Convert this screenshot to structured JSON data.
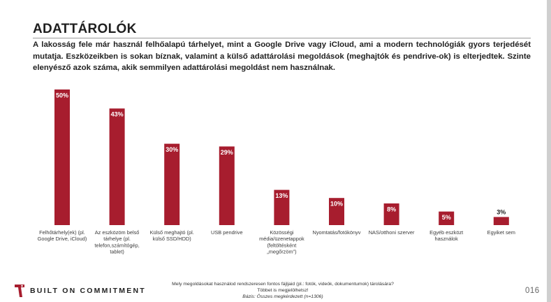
{
  "slide": {
    "title": "ADATTÁROLÓK",
    "intro": "A lakosság fele már használ felhőalapú tárhelyet, mint a Google Drive vagy iCloud, ami a modern technológiák gyors terjedését mutatja. Eszközeikben is sokan bíznak, valamint a külső adattárolási megoldások (meghajtók és pendrive-ok) is elterjedtek. Szinte elenyésző azok száma, akik semmilyen adattárolási megoldást nem használnak.",
    "page_number": "016"
  },
  "footer": {
    "brand": "BUILT ON COMMITMENT",
    "question_line1": "Mely megoldásokat használod rendszeresen fontos fájljaid (pl.: fotók, videók, dokumentumok) tárolására?",
    "question_line2": "Többet is megjelölhetsz!",
    "basis": "Bázis: Összes megkérdezett (n=1306)"
  },
  "chart_data": {
    "type": "bar",
    "categories": [
      [
        "Felhőtárhely(ek) (pl.",
        "Google Drive, iCloud)"
      ],
      [
        "Az eszközöm belső",
        "tárhelye (pl.",
        "telefon,számítógép,",
        "tablet)"
      ],
      [
        "Külső meghajtó (pl.",
        "külső SSD/HDD)"
      ],
      [
        "USB pendrive"
      ],
      [
        "Közösségi",
        "média/üzenetappok",
        "(feltöltésként",
        "„megőrzöm”)"
      ],
      [
        "Nyomtatás/fotókönyv"
      ],
      [
        "NAS/otthoni szerver"
      ],
      [
        "Egyéb eszközt",
        "használok"
      ],
      [
        "Egyiket sem"
      ]
    ],
    "values": [
      50,
      43,
      30,
      29,
      13,
      10,
      8,
      5,
      3
    ],
    "value_labels": [
      "50%",
      "43%",
      "30%",
      "29%",
      "13%",
      "10%",
      "8%",
      "5%",
      "3%"
    ],
    "unit": "%",
    "ylim": [
      0,
      50
    ],
    "bar_color": "#a71d2e",
    "label_color_inside": "#ffffff",
    "label_color_outside": "#222222",
    "grid": false,
    "legend": "none"
  }
}
